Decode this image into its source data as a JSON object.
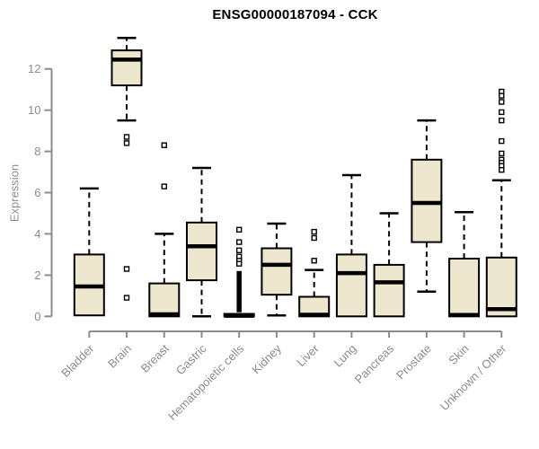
{
  "chart_data": {
    "type": "boxplot",
    "title": "ENSG00000187094 - CCK",
    "ylabel": "Expression",
    "xlabel": "",
    "ylim": [
      -0.7,
      13.6
    ],
    "yticks": [
      0,
      2,
      4,
      6,
      8,
      10,
      12
    ],
    "grid": false,
    "legend": "none",
    "categories": [
      "Bladder",
      "Brain",
      "Breast",
      "Gastric",
      "Hematopoietic cells",
      "Kidney",
      "Liver",
      "Lung",
      "Pancreas",
      "Prostate",
      "Skin",
      "Unknown / Other"
    ],
    "boxes": [
      {
        "label": "Bladder",
        "whisker_low": 0.05,
        "q1": 0.05,
        "median": 1.45,
        "q3": 3.0,
        "whisker_high": 6.2,
        "outliers": []
      },
      {
        "label": "Brain",
        "whisker_low": 9.5,
        "q1": 11.2,
        "median": 12.45,
        "q3": 12.9,
        "whisker_high": 13.5,
        "outliers": [
          8.7,
          8.4,
          2.3,
          0.9
        ]
      },
      {
        "label": "Breast",
        "whisker_low": 0,
        "q1": 0,
        "median": 0.1,
        "q3": 1.6,
        "whisker_high": 4.0,
        "outliers": [
          8.3,
          6.3
        ]
      },
      {
        "label": "Gastric",
        "whisker_low": 0,
        "q1": 1.75,
        "median": 3.4,
        "q3": 4.55,
        "whisker_high": 7.2,
        "outliers": []
      },
      {
        "label": "Hematopoietic cells",
        "whisker_low": 0,
        "q1": 0,
        "median": 0.03,
        "q3": 0.12,
        "whisker_high": 0.12,
        "outliers": [
          4.2,
          3.6,
          3.2,
          2.9,
          2.7,
          2.55
        ],
        "outlier_strip": [
          0.2,
          2.2
        ]
      },
      {
        "label": "Kidney",
        "whisker_low": 0.05,
        "q1": 1.05,
        "median": 2.5,
        "q3": 3.3,
        "whisker_high": 4.5,
        "outliers": []
      },
      {
        "label": "Liver",
        "whisker_low": 0,
        "q1": 0,
        "median": 0.08,
        "q3": 0.95,
        "whisker_high": 2.25,
        "outliers": [
          4.1,
          3.8,
          2.7
        ]
      },
      {
        "label": "Lung",
        "whisker_low": 0,
        "q1": 0,
        "median": 2.1,
        "q3": 3.0,
        "whisker_high": 6.85,
        "outliers": []
      },
      {
        "label": "Pancreas",
        "whisker_low": 0,
        "q1": 0,
        "median": 1.65,
        "q3": 2.5,
        "whisker_high": 5.0,
        "outliers": []
      },
      {
        "label": "Prostate",
        "whisker_low": 1.2,
        "q1": 3.6,
        "median": 5.5,
        "q3": 7.6,
        "whisker_high": 9.5,
        "outliers": []
      },
      {
        "label": "Skin",
        "whisker_low": 0,
        "q1": 0,
        "median": 0.07,
        "q3": 2.8,
        "whisker_high": 5.05,
        "outliers": []
      },
      {
        "label": "Unknown / Other",
        "whisker_low": 0,
        "q1": 0,
        "median": 0.35,
        "q3": 2.85,
        "whisker_high": 6.6,
        "outliers": [
          10.9,
          10.7,
          10.4,
          9.9,
          9.5,
          8.5,
          7.9,
          7.6,
          7.45,
          7.3,
          7.1
        ]
      }
    ],
    "colors": {
      "box_fill": "#EDE7CE",
      "box_stroke": "#000000",
      "median": "#000000",
      "whisker": "#000000",
      "axis_line": "#8C8C8C",
      "axis_text": "#8C8C8C",
      "title": "#000000",
      "background": "#FFFFFF"
    }
  }
}
